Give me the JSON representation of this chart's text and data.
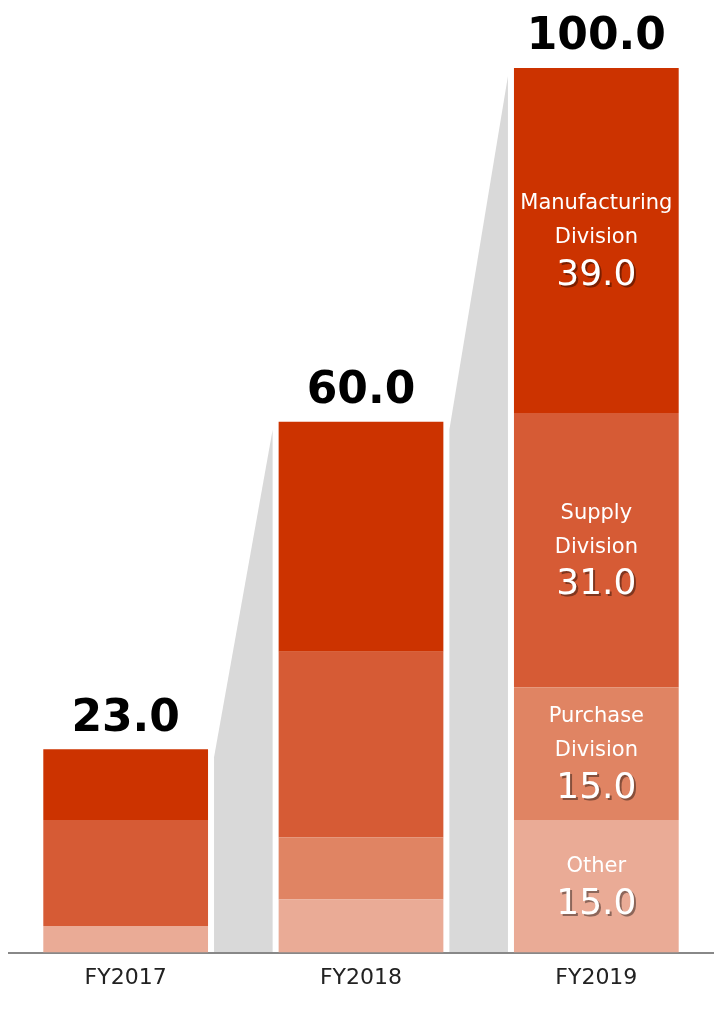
{
  "chart_data": {
    "type": "bar",
    "stacked": true,
    "categories": [
      "FY2017",
      "FY2018",
      "FY2019"
    ],
    "series": [
      {
        "name": "Other",
        "color": "#eaab96",
        "values": [
          3,
          6,
          15
        ],
        "value_labels": [
          null,
          null,
          "15.0"
        ]
      },
      {
        "name": "Purchase Division",
        "color": "#e08463",
        "values": [
          0,
          7,
          15
        ],
        "value_labels": [
          null,
          null,
          "15.0"
        ]
      },
      {
        "name": "Supply Division",
        "color": "#d65b35",
        "values": [
          12,
          21,
          31
        ],
        "value_labels": [
          null,
          null,
          "31.0"
        ]
      },
      {
        "name": "Manufacturing Division",
        "color": "#cc3300",
        "values": [
          8,
          26,
          39
        ],
        "value_labels": [
          null,
          null,
          "39.0"
        ]
      }
    ],
    "totals": [
      "23.0",
      "60.0",
      "100.0"
    ],
    "grid": false,
    "legend": false
  }
}
